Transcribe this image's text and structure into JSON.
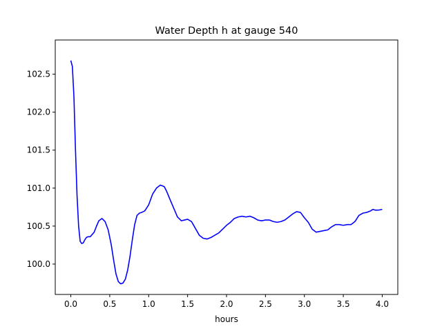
{
  "chart_data": {
    "type": "line",
    "title": "Water Depth h at gauge 540",
    "xlabel": "hours",
    "ylabel": "",
    "xlim": [
      -0.2,
      4.2
    ],
    "ylim": [
      99.6,
      102.95
    ],
    "xticks": [
      0.0,
      0.5,
      1.0,
      1.5,
      2.0,
      2.5,
      3.0,
      3.5,
      4.0
    ],
    "xtick_labels": [
      "0.0",
      "0.5",
      "1.0",
      "1.5",
      "2.0",
      "2.5",
      "3.0",
      "3.5",
      "4.0"
    ],
    "yticks": [
      100.0,
      100.5,
      101.0,
      101.5,
      102.0,
      102.5
    ],
    "ytick_labels": [
      "100.0",
      "100.5",
      "101.0",
      "101.5",
      "102.0",
      "102.5"
    ],
    "grid": false,
    "series": [
      {
        "color": "#0000ff",
        "x": [
          0.0,
          0.02,
          0.04,
          0.06,
          0.08,
          0.1,
          0.12,
          0.14,
          0.16,
          0.18,
          0.2,
          0.22,
          0.25,
          0.3,
          0.33,
          0.36,
          0.4,
          0.44,
          0.48,
          0.52,
          0.55,
          0.58,
          0.61,
          0.64,
          0.67,
          0.7,
          0.73,
          0.76,
          0.79,
          0.82,
          0.85,
          0.88,
          0.91,
          0.95,
          1.0,
          1.05,
          1.1,
          1.15,
          1.2,
          1.23,
          1.27,
          1.32,
          1.37,
          1.42,
          1.46,
          1.5,
          1.55,
          1.6,
          1.65,
          1.7,
          1.75,
          1.8,
          1.85,
          1.9,
          1.95,
          2.0,
          2.05,
          2.1,
          2.15,
          2.2,
          2.25,
          2.3,
          2.35,
          2.4,
          2.45,
          2.5,
          2.55,
          2.6,
          2.65,
          2.7,
          2.75,
          2.8,
          2.85,
          2.9,
          2.95,
          3.0,
          3.05,
          3.1,
          3.15,
          3.2,
          3.25,
          3.3,
          3.35,
          3.4,
          3.45,
          3.5,
          3.55,
          3.6,
          3.65,
          3.7,
          3.75,
          3.8,
          3.85,
          3.88,
          3.91,
          3.95,
          4.0
        ],
        "y": [
          102.68,
          102.6,
          102.2,
          101.5,
          100.9,
          100.5,
          100.3,
          100.27,
          100.28,
          100.32,
          100.35,
          100.36,
          100.36,
          100.42,
          100.5,
          100.57,
          100.6,
          100.56,
          100.45,
          100.25,
          100.05,
          99.87,
          99.77,
          99.74,
          99.75,
          99.8,
          99.92,
          100.1,
          100.32,
          100.52,
          100.64,
          100.67,
          100.68,
          100.7,
          100.78,
          100.92,
          101.0,
          101.04,
          101.02,
          100.96,
          100.86,
          100.74,
          100.62,
          100.57,
          100.58,
          100.59,
          100.56,
          100.47,
          100.38,
          100.34,
          100.33,
          100.35,
          100.38,
          100.41,
          100.46,
          100.51,
          100.55,
          100.6,
          100.62,
          100.63,
          100.62,
          100.63,
          100.61,
          100.58,
          100.57,
          100.58,
          100.58,
          100.56,
          100.55,
          100.56,
          100.58,
          100.62,
          100.66,
          100.69,
          100.68,
          100.61,
          100.55,
          100.46,
          100.42,
          100.43,
          100.44,
          100.45,
          100.49,
          100.52,
          100.52,
          100.51,
          100.52,
          100.52,
          100.56,
          100.64,
          100.67,
          100.68,
          100.7,
          100.72,
          100.71,
          100.71,
          100.72
        ]
      }
    ]
  }
}
